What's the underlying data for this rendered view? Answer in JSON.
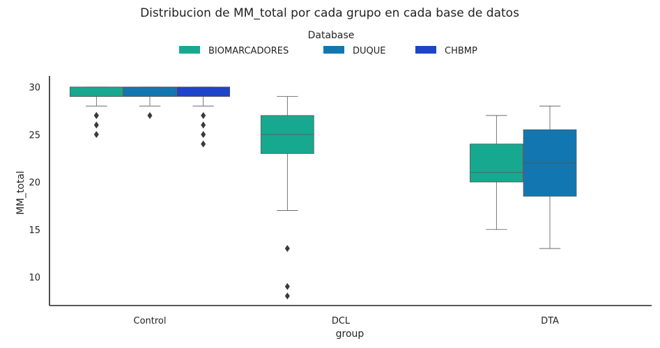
{
  "chart_data": {
    "type": "box",
    "title": "Distribucion de MM_total por cada grupo en cada base de datos",
    "xlabel": "group",
    "ylabel": "MM_total",
    "ylim": [
      7,
      31
    ],
    "yticks": [
      10,
      15,
      20,
      25,
      30
    ],
    "categories": [
      "Control",
      "DCL",
      "DTA"
    ],
    "legend": {
      "title": "Database",
      "placement": "top-center",
      "entries": [
        "BIOMARCADORES",
        "DUQUE",
        "CHBMP"
      ]
    },
    "series": [
      {
        "name": "BIOMARCADORES",
        "color": "#17a98f",
        "boxes": [
          {
            "category": "Control",
            "whisker_low": 28,
            "q1": 29,
            "median": 29,
            "q3": 30,
            "whisker_high": 30,
            "outliers": [
              27,
              27,
              26,
              25
            ]
          },
          {
            "category": "DCL",
            "whisker_low": 17,
            "q1": 23,
            "median": 25,
            "q3": 27,
            "whisker_high": 29,
            "outliers": [
              13,
              9,
              8
            ]
          },
          {
            "category": "DTA",
            "whisker_low": 15,
            "q1": 20,
            "median": 21,
            "q3": 24,
            "whisker_high": 27,
            "outliers": []
          }
        ]
      },
      {
        "name": "DUQUE",
        "color": "#1277b0",
        "boxes": [
          {
            "category": "Control",
            "whisker_low": 28,
            "q1": 29,
            "median": 29,
            "q3": 30,
            "whisker_high": 30,
            "outliers": [
              27
            ]
          },
          {
            "category": "DTA",
            "whisker_low": 13,
            "q1": 18.5,
            "median": 22,
            "q3": 25.5,
            "whisker_high": 28,
            "outliers": []
          }
        ]
      },
      {
        "name": "CHBMP",
        "color": "#1e44cc",
        "boxes": [
          {
            "category": "Control",
            "whisker_low": 28,
            "q1": 29,
            "median": 29,
            "q3": 30,
            "whisker_high": 30,
            "outliers": [
              27,
              26,
              25,
              24
            ]
          }
        ]
      }
    ]
  }
}
